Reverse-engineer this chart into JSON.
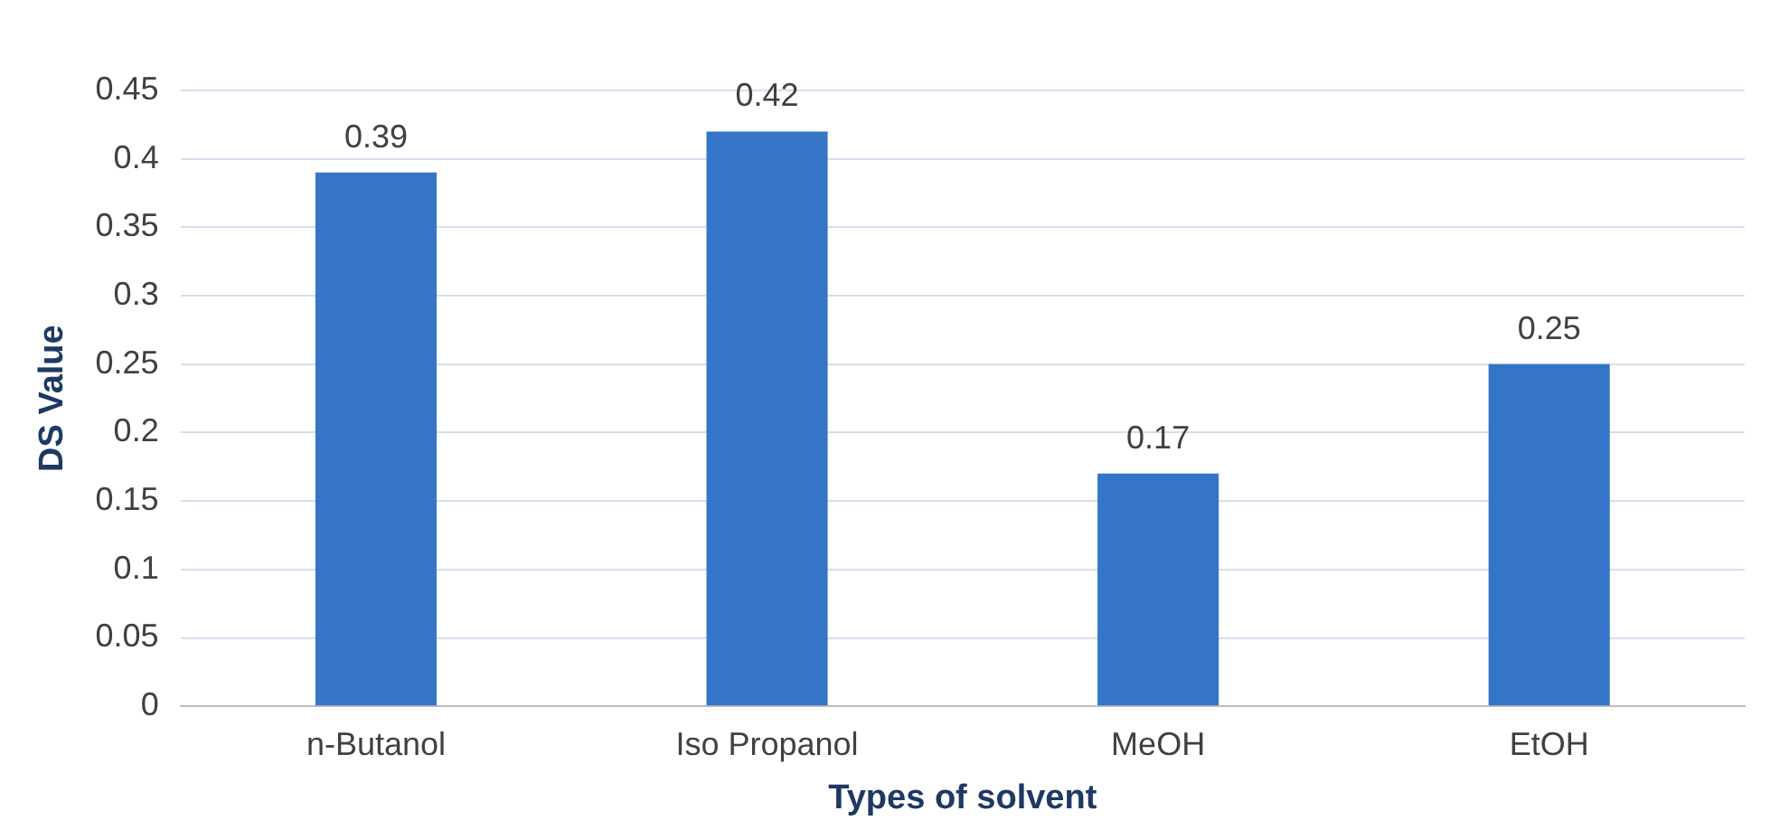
{
  "chart_data": {
    "type": "bar",
    "xlabel": "Types of solvent",
    "ylabel": "DS Value",
    "categories": [
      "n-Butanol",
      "Iso Propanol",
      "MeOH",
      "EtOH"
    ],
    "values": [
      0.39,
      0.42,
      0.17,
      0.25
    ],
    "color": "#3575c8",
    "ylim": [
      0,
      0.45
    ],
    "yticks": [
      0,
      0.05,
      0.1,
      0.15,
      0.2,
      0.25,
      0.3,
      0.35,
      0.4,
      0.45
    ],
    "grid": "y",
    "data_labels": true,
    "legend": false
  }
}
